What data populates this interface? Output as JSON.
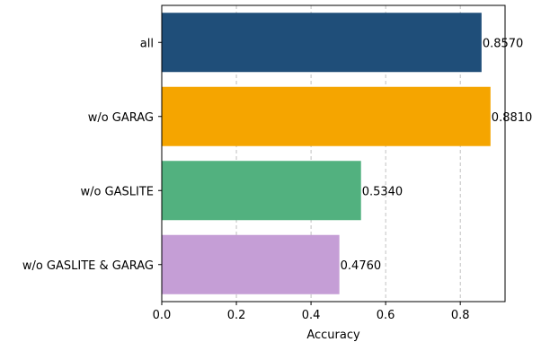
{
  "chart_data": {
    "type": "bar",
    "orientation": "horizontal",
    "title": "",
    "xlabel": "Accuracy",
    "ylabel": "",
    "categories": [
      "all",
      "w/o GARAG",
      "w/o GASLITE",
      "w/o GASLITE & GARAG"
    ],
    "values": [
      0.857,
      0.881,
      0.534,
      0.476
    ],
    "data_labels": [
      "0.8570",
      "0.8810",
      "0.5340",
      "0.4760"
    ],
    "bar_colors": [
      "#1f4e79",
      "#f5a500",
      "#52b17f",
      "#c59ed6"
    ],
    "xlim": [
      0,
      0.92
    ],
    "xticks": [
      0.0,
      0.2,
      0.4,
      0.6,
      0.8
    ],
    "xtick_labels": [
      "0.0",
      "0.2",
      "0.4",
      "0.6",
      "0.8"
    ],
    "grid": "x-dashed"
  }
}
